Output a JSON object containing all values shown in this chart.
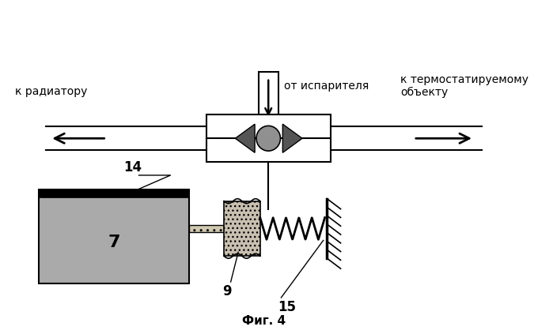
{
  "bg_color": "white",
  "title": "Фиг. 4",
  "label_ot_isparitelya": "от испарителя",
  "label_k_radiatoru": "к радиатору",
  "label_k_termostatu": "к термостатируемому\nобъекту",
  "num_7": "7",
  "num_9": "9",
  "num_14": "14",
  "num_15": "15"
}
